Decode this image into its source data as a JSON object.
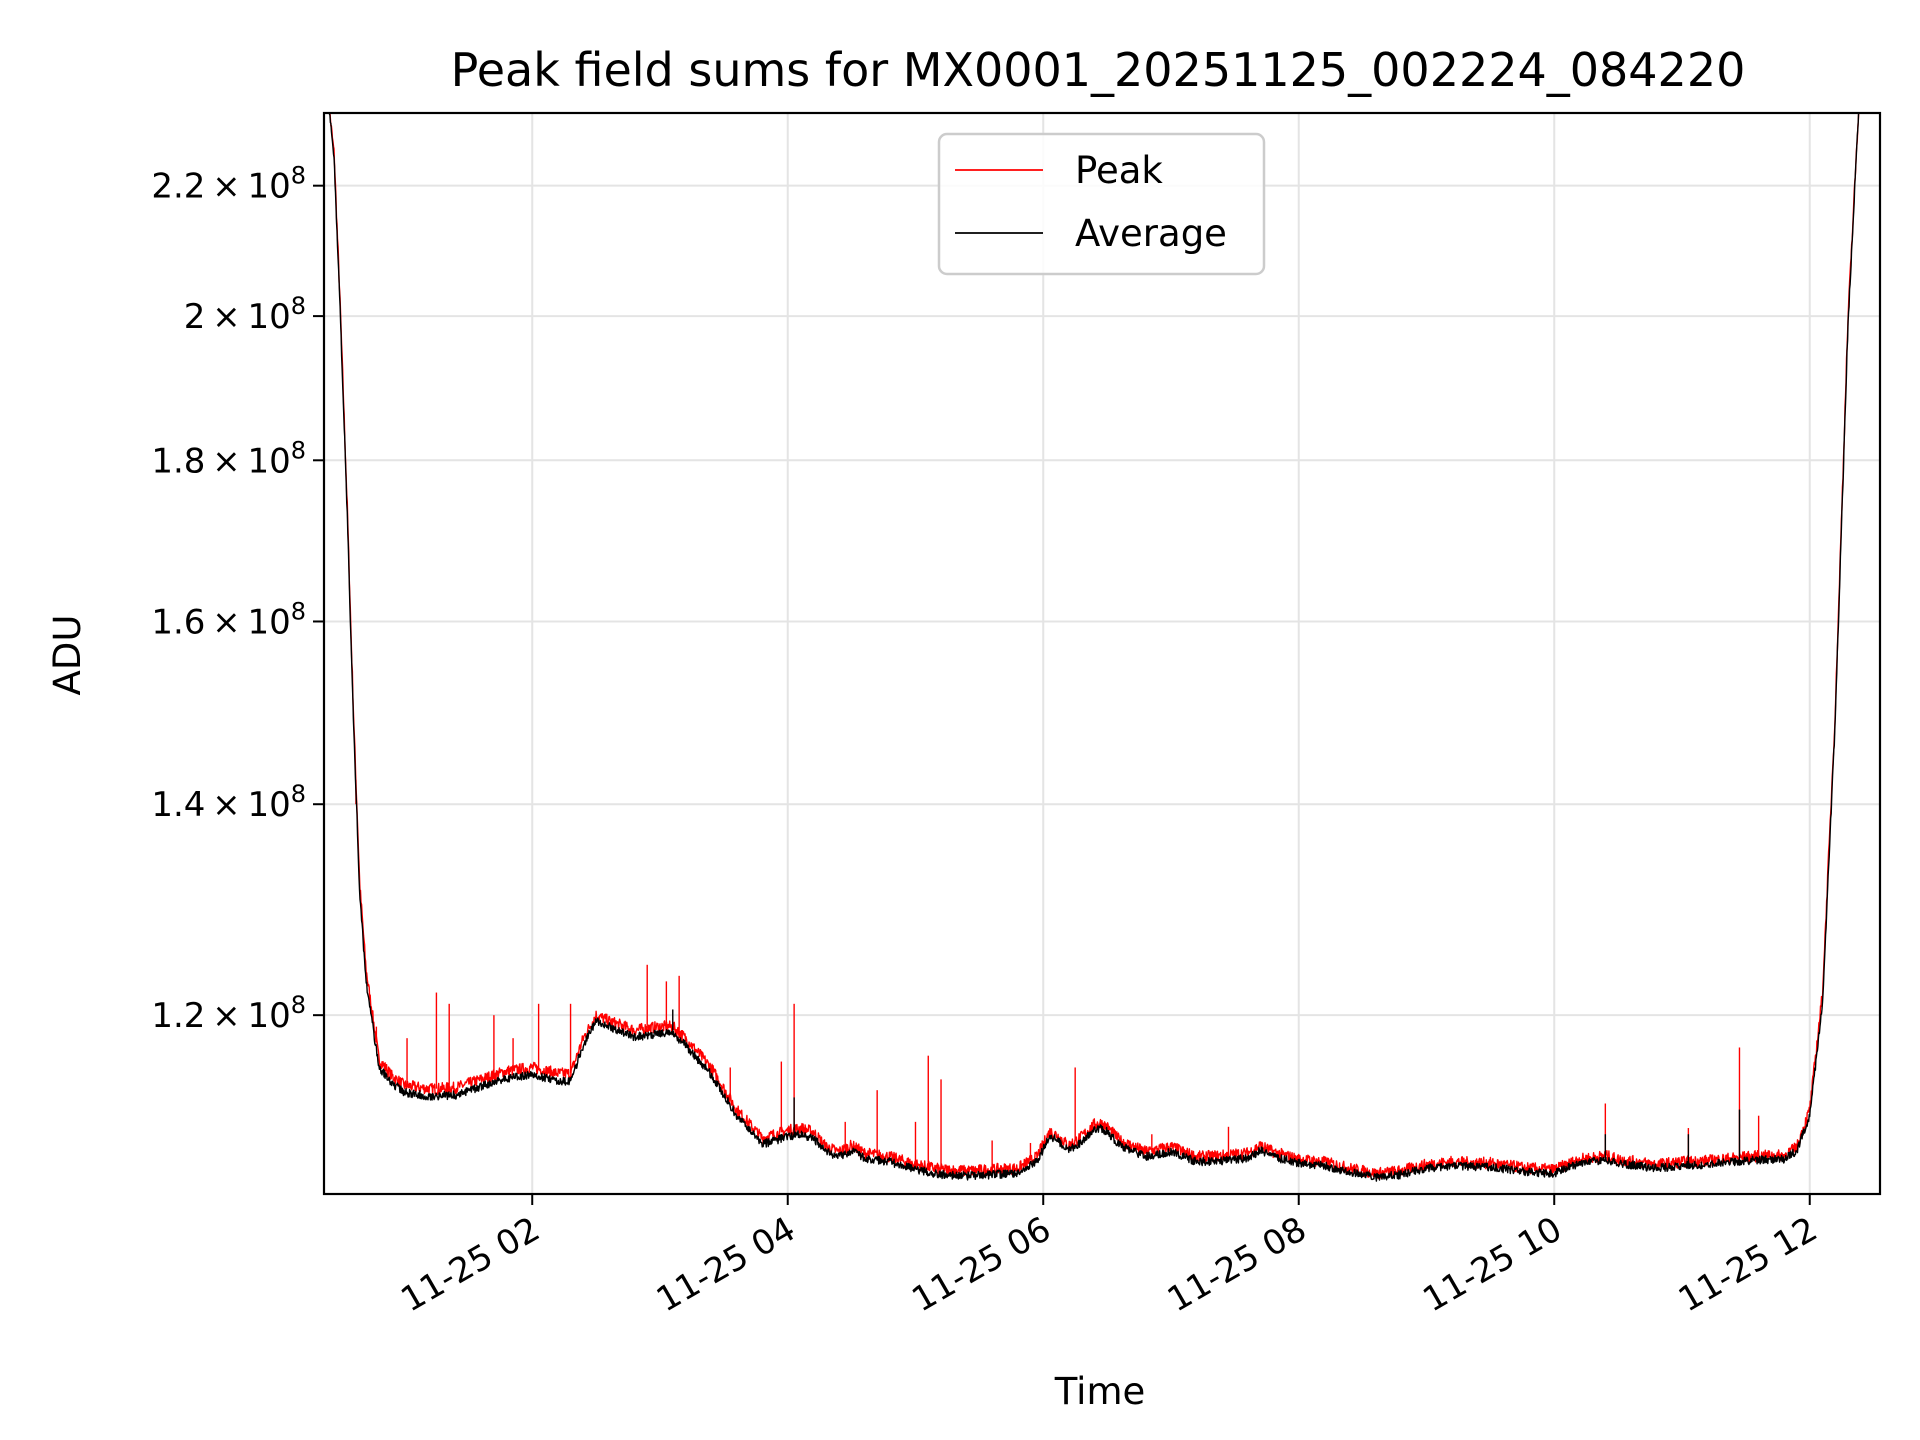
{
  "chart_data": {
    "type": "line",
    "title": "Peak field sums for MX0001_20251125_002224_084220",
    "xlabel": "Time",
    "ylabel": "ADU",
    "yscale": "log",
    "grid": true,
    "legend_position": "upper-center",
    "x_unit": "hours since 11-25 00:00",
    "xlim": [
      0.37,
      12.55
    ],
    "ylim": [
      105300000.0,
      232000000.0
    ],
    "x_ticks": [
      {
        "value": 2,
        "label": "11-25 02"
      },
      {
        "value": 4,
        "label": "11-25 04"
      },
      {
        "value": 6,
        "label": "11-25 06"
      },
      {
        "value": 8,
        "label": "11-25 08"
      },
      {
        "value": 10,
        "label": "11-25 10"
      },
      {
        "value": 12,
        "label": "11-25 12"
      }
    ],
    "y_ticks": [
      {
        "value": 120000000.0,
        "mantissa": "1.2",
        "exponent": "8"
      },
      {
        "value": 140000000.0,
        "mantissa": "1.4",
        "exponent": "8"
      },
      {
        "value": 160000000.0,
        "mantissa": "1.6",
        "exponent": "8"
      },
      {
        "value": 180000000.0,
        "mantissa": "1.8",
        "exponent": "8"
      },
      {
        "value": 200000000.0,
        "mantissa": "2",
        "exponent": "8"
      },
      {
        "value": 220000000.0,
        "mantissa": "2.2",
        "exponent": "8"
      }
    ],
    "series": [
      {
        "name": "Peak",
        "color": "#ff0000",
        "x": [
          0.4,
          0.45,
          0.5,
          0.55,
          0.6,
          0.65,
          0.7,
          0.8,
          0.9,
          1.0,
          1.2,
          1.4,
          1.6,
          1.8,
          2.0,
          2.2,
          2.3,
          2.4,
          2.5,
          2.6,
          2.8,
          3.0,
          3.1,
          3.2,
          3.4,
          3.6,
          3.8,
          4.0,
          4.1,
          4.2,
          4.3,
          4.4,
          4.5,
          4.6,
          4.8,
          5.0,
          5.2,
          5.4,
          5.6,
          5.8,
          5.95,
          6.05,
          6.1,
          6.2,
          6.3,
          6.4,
          6.45,
          6.5,
          6.6,
          6.8,
          7.0,
          7.2,
          7.4,
          7.6,
          7.7,
          7.8,
          8.0,
          8.2,
          8.4,
          8.6,
          8.8,
          9.0,
          9.2,
          9.5,
          9.8,
          10.0,
          10.2,
          10.35,
          10.4,
          10.5,
          10.8,
          11.0,
          11.2,
          11.5,
          11.7,
          11.8,
          11.9,
          12.0,
          12.1,
          12.2,
          12.3,
          12.4
        ],
        "y": [
          235000000.0,
          225000000.0,
          200000000.0,
          175000000.0,
          150000000.0,
          132000000.0,
          124000000.0,
          116200000.0,
          114800000.0,
          114000000.0,
          113700000.0,
          113800000.0,
          114500000.0,
          115200000.0,
          115500000.0,
          115000000.0,
          115000000.0,
          118000000.0,
          120000000.0,
          119500000.0,
          118700000.0,
          119000000.0,
          119000000.0,
          118000000.0,
          115500000.0,
          112000000.0,
          109700000.0,
          110300000.0,
          110500000.0,
          110200000.0,
          109000000.0,
          108600000.0,
          109100000.0,
          108500000.0,
          108200000.0,
          107600000.0,
          107200000.0,
          107100000.0,
          107200000.0,
          107300000.0,
          108200000.0,
          110200000.0,
          110000000.0,
          109100000.0,
          109800000.0,
          110800000.0,
          110900000.0,
          110600000.0,
          109500000.0,
          108600000.0,
          109000000.0,
          108200000.0,
          108300000.0,
          108500000.0,
          109100000.0,
          108600000.0,
          108000000.0,
          107800000.0,
          107300000.0,
          106900000.0,
          107100000.0,
          107600000.0,
          107800000.0,
          107700000.0,
          107300000.0,
          107200000.0,
          108000000.0,
          108200000.0,
          108300000.0,
          108000000.0,
          107600000.0,
          107800000.0,
          107900000.0,
          108200000.0,
          108300000.0,
          108300000.0,
          109000000.0,
          112000000.0,
          122000000.0,
          150000000.0,
          200000000.0,
          240000000.0
        ],
        "spikes": [
          {
            "x": 0.62,
            "y": 140000000.0
          },
          {
            "x": 0.78,
            "y": 119000000.0
          },
          {
            "x": 1.02,
            "y": 118000000.0
          },
          {
            "x": 1.25,
            "y": 122000000.0
          },
          {
            "x": 1.35,
            "y": 121000000.0
          },
          {
            "x": 1.7,
            "y": 120000000.0
          },
          {
            "x": 1.85,
            "y": 118000000.0
          },
          {
            "x": 2.05,
            "y": 121000000.0
          },
          {
            "x": 2.3,
            "y": 121000000.0
          },
          {
            "x": 2.55,
            "y": 120000000.0
          },
          {
            "x": 2.9,
            "y": 124500000.0
          },
          {
            "x": 3.05,
            "y": 123000000.0
          },
          {
            "x": 3.15,
            "y": 123500000.0
          },
          {
            "x": 3.55,
            "y": 115500000.0
          },
          {
            "x": 3.95,
            "y": 116000000.0
          },
          {
            "x": 4.05,
            "y": 121000000.0
          },
          {
            "x": 4.45,
            "y": 111000000.0
          },
          {
            "x": 4.7,
            "y": 113600000.0
          },
          {
            "x": 5.0,
            "y": 111000000.0
          },
          {
            "x": 5.1,
            "y": 116500000.0
          },
          {
            "x": 5.2,
            "y": 114500000.0
          },
          {
            "x": 5.6,
            "y": 109500000.0
          },
          {
            "x": 5.9,
            "y": 109300000.0
          },
          {
            "x": 6.25,
            "y": 115500000.0
          },
          {
            "x": 6.85,
            "y": 110000000.0
          },
          {
            "x": 7.45,
            "y": 110600000.0
          },
          {
            "x": 10.4,
            "y": 112500000.0
          },
          {
            "x": 11.05,
            "y": 110500000.0
          },
          {
            "x": 11.45,
            "y": 117200000.0
          },
          {
            "x": 11.6,
            "y": 111500000.0
          }
        ]
      },
      {
        "name": "Average",
        "color": "#000000",
        "x": [
          0.4,
          0.45,
          0.5,
          0.55,
          0.6,
          0.65,
          0.7,
          0.8,
          0.9,
          1.0,
          1.2,
          1.4,
          1.6,
          1.8,
          2.0,
          2.2,
          2.3,
          2.4,
          2.5,
          2.6,
          2.8,
          3.0,
          3.1,
          3.2,
          3.4,
          3.6,
          3.8,
          4.0,
          4.1,
          4.2,
          4.3,
          4.4,
          4.5,
          4.6,
          4.8,
          5.0,
          5.2,
          5.4,
          5.6,
          5.8,
          5.95,
          6.05,
          6.1,
          6.2,
          6.3,
          6.4,
          6.45,
          6.5,
          6.6,
          6.8,
          7.0,
          7.2,
          7.4,
          7.6,
          7.7,
          7.8,
          8.0,
          8.2,
          8.4,
          8.6,
          8.8,
          9.0,
          9.2,
          9.5,
          9.8,
          10.0,
          10.2,
          10.35,
          10.4,
          10.5,
          10.8,
          11.0,
          11.2,
          11.5,
          11.7,
          11.8,
          11.9,
          12.0,
          12.1,
          12.2,
          12.3,
          12.4
        ],
        "y": [
          235000000.0,
          224000000.0,
          199000000.0,
          174000000.0,
          149000000.0,
          131000000.0,
          123000000.0,
          115500000.0,
          114200000.0,
          113400000.0,
          113100000.0,
          113200000.0,
          113900000.0,
          114600000.0,
          114900000.0,
          114400000.0,
          114300000.0,
          117400000.0,
          119500000.0,
          119000000.0,
          118100000.0,
          118400000.0,
          118400000.0,
          117400000.0,
          114900000.0,
          111500000.0,
          109200000.0,
          109800000.0,
          110000000.0,
          109700000.0,
          108600000.0,
          108200000.0,
          108700000.0,
          108100000.0,
          107800000.0,
          107200000.0,
          106800000.0,
          106700000.0,
          106800000.0,
          106900000.0,
          107800000.0,
          109800000.0,
          109600000.0,
          108700000.0,
          109400000.0,
          110400000.0,
          110500000.0,
          110200000.0,
          109100000.0,
          108200000.0,
          108600000.0,
          107800000.0,
          107900000.0,
          108100000.0,
          108700000.0,
          108200000.0,
          107700000.0,
          107500000.0,
          107000000.0,
          106600000.0,
          106800000.0,
          107300000.0,
          107500000.0,
          107400000.0,
          107000000.0,
          106900000.0,
          107700000.0,
          107900000.0,
          108000000.0,
          107700000.0,
          107300000.0,
          107500000.0,
          107600000.0,
          107900000.0,
          108000000.0,
          108000000.0,
          108700000.0,
          111500000.0,
          121000000.0,
          149000000.0,
          199000000.0,
          240000000.0
        ],
        "spikes": [
          {
            "x": 3.1,
            "y": 120500000.0
          },
          {
            "x": 4.05,
            "y": 113000000.0
          },
          {
            "x": 10.4,
            "y": 110000000.0
          },
          {
            "x": 11.05,
            "y": 110000000.0
          },
          {
            "x": 11.45,
            "y": 112000000.0
          }
        ]
      }
    ],
    "multiplier_symbol": "×",
    "base": "10"
  }
}
